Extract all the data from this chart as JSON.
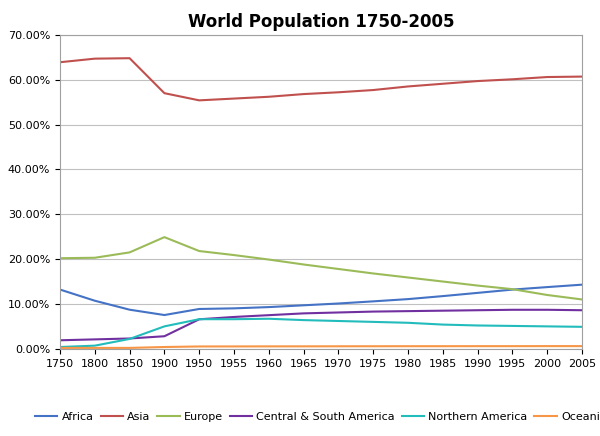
{
  "title": "World Population 1750-2005",
  "years": [
    1750,
    1800,
    1850,
    1900,
    1950,
    1955,
    1960,
    1965,
    1970,
    1975,
    1980,
    1985,
    1990,
    1995,
    2000,
    2005
  ],
  "series": {
    "Africa": {
      "color": "#4472C4",
      "values": [
        0.1321,
        0.1072,
        0.0872,
        0.0753,
        0.0888,
        0.0902,
        0.093,
        0.097,
        0.101,
        0.1058,
        0.1108,
        0.1175,
        0.1247,
        0.132,
        0.1376,
        0.143
      ]
    },
    "Asia": {
      "color": "#C0504D",
      "values": [
        0.639,
        0.647,
        0.648,
        0.57,
        0.554,
        0.558,
        0.562,
        0.568,
        0.572,
        0.577,
        0.585,
        0.591,
        0.597,
        0.601,
        0.606,
        0.607
      ]
    },
    "Europe": {
      "color": "#9BBB59",
      "values": [
        0.202,
        0.203,
        0.215,
        0.249,
        0.218,
        0.209,
        0.199,
        0.188,
        0.178,
        0.168,
        0.159,
        0.15,
        0.141,
        0.133,
        0.12,
        0.11
      ]
    },
    "Central & South America": {
      "color": "#7030A0",
      "values": [
        0.019,
        0.021,
        0.023,
        0.028,
        0.0658,
        0.071,
        0.075,
        0.079,
        0.081,
        0.083,
        0.084,
        0.085,
        0.086,
        0.087,
        0.087,
        0.086
      ]
    },
    "Northern America": {
      "color": "#23BCBC",
      "values": [
        0.004,
        0.007,
        0.022,
        0.05,
        0.066,
        0.066,
        0.067,
        0.064,
        0.062,
        0.06,
        0.058,
        0.054,
        0.052,
        0.051,
        0.05,
        0.049
      ]
    },
    "Oceania": {
      "color": "#F79646",
      "values": [
        0.002,
        0.002,
        0.002,
        0.004,
        0.0052,
        0.0053,
        0.0054,
        0.0055,
        0.0056,
        0.0057,
        0.0058,
        0.0058,
        0.0059,
        0.0059,
        0.006,
        0.006
      ]
    }
  },
  "ylim": [
    0.0,
    0.7
  ],
  "yticks": [
    0.0,
    0.1,
    0.2,
    0.3,
    0.4,
    0.5,
    0.6,
    0.7
  ],
  "background_color": "#FFFFFF",
  "plot_bg_color": "#FFFFFF",
  "grid_color": "#C0C0C0",
  "title_fontsize": 12,
  "tick_fontsize": 8,
  "legend_fontsize": 8
}
